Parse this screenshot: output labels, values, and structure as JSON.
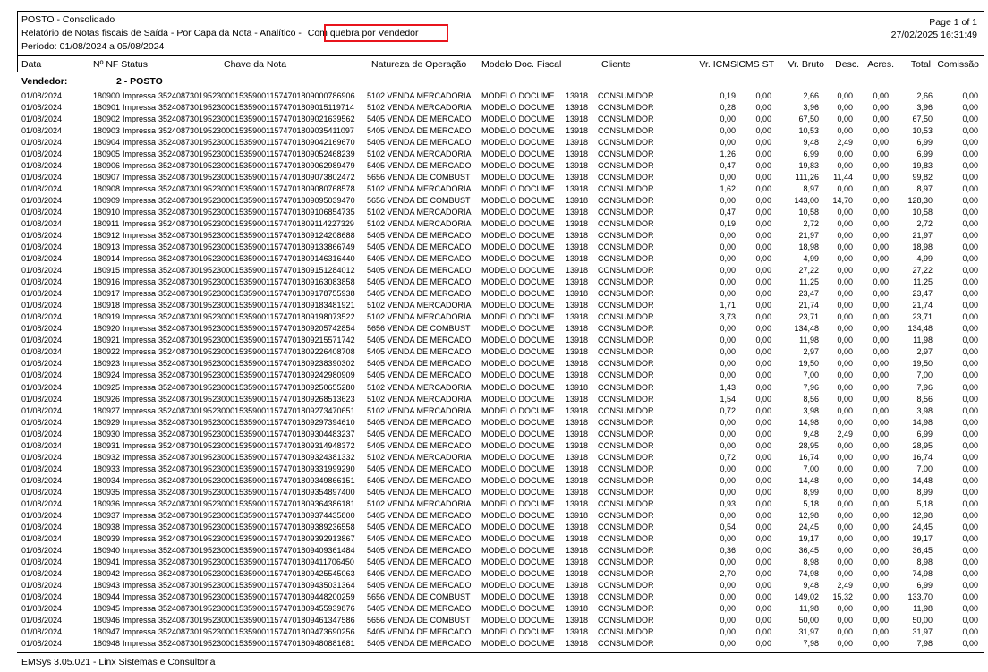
{
  "header": {
    "company": "POSTO - Consolidado",
    "report_title": "Relatório de Notas fiscais de Saída  -  Por Capa da Nota  -  Analítico  - ",
    "highlight": "Com quebra por Vendedor",
    "period": "Período: 01/08/2024 a 05/08/2024",
    "page": "Page 1 of 1",
    "datetime": "27/02/2025 16:31:49"
  },
  "columns": {
    "data": "Data",
    "nf_status": "Nº NF Status",
    "chave": "Chave da Nota",
    "natureza": "Natureza de Operação",
    "modelo": "Modelo Doc. Fiscal",
    "cliente": "Cliente",
    "vr_icms": "Vr. ICMS",
    "icms_st": "ICMS ST",
    "vr_bruto": "Vr. Bruto",
    "desc": "Desc.",
    "acres": "Acres.",
    "total": "Total",
    "comissao": "Comissão"
  },
  "group": {
    "label": "Vendedor:",
    "value": "2  -  POSTO"
  },
  "highlight_color": "#e8141c",
  "rows": [
    [
      "01/08/2024",
      "180900",
      "Impressa",
      "35240873019523000153590011574701809000786906",
      "5102 VENDA MERCADORIA",
      "MODELO DOCUME",
      "13918",
      "CONSUMIDOR",
      "0,19",
      "0,00",
      "2,66",
      "0,00",
      "0,00",
      "2,66",
      "0,00"
    ],
    [
      "01/08/2024",
      "180901",
      "Impressa",
      "35240873019523000153590011574701809015119714",
      "5102 VENDA MERCADORIA",
      "MODELO DOCUME",
      "13918",
      "CONSUMIDOR",
      "0,28",
      "0,00",
      "3,96",
      "0,00",
      "0,00",
      "3,96",
      "0,00"
    ],
    [
      "01/08/2024",
      "180902",
      "Impressa",
      "35240873019523000153590011574701809021639562",
      "5405 VENDA DE MERCADO",
      "MODELO DOCUME",
      "13918",
      "CONSUMIDOR",
      "0,00",
      "0,00",
      "67,50",
      "0,00",
      "0,00",
      "67,50",
      "0,00"
    ],
    [
      "01/08/2024",
      "180903",
      "Impressa",
      "35240873019523000153590011574701809035411097",
      "5405 VENDA DE MERCADO",
      "MODELO DOCUME",
      "13918",
      "CONSUMIDOR",
      "0,00",
      "0,00",
      "10,53",
      "0,00",
      "0,00",
      "10,53",
      "0,00"
    ],
    [
      "01/08/2024",
      "180904",
      "Impressa",
      "35240873019523000153590011574701809042169670",
      "5405 VENDA DE MERCADO",
      "MODELO DOCUME",
      "13918",
      "CONSUMIDOR",
      "0,00",
      "0,00",
      "9,48",
      "2,49",
      "0,00",
      "6,99",
      "0,00"
    ],
    [
      "01/08/2024",
      "180905",
      "Impressa",
      "35240873019523000153590011574701809052468239",
      "5102 VENDA MERCADORIA",
      "MODELO DOCUME",
      "13918",
      "CONSUMIDOR",
      "1,26",
      "0,00",
      "6,99",
      "0,00",
      "0,00",
      "6,99",
      "0,00"
    ],
    [
      "01/08/2024",
      "180906",
      "Impressa",
      "35240873019523000153590011574701809062989479",
      "5405 VENDA DE MERCADO",
      "MODELO DOCUME",
      "13918",
      "CONSUMIDOR",
      "0,47",
      "0,00",
      "19,83",
      "0,00",
      "0,00",
      "19,83",
      "0,00"
    ],
    [
      "01/08/2024",
      "180907",
      "Impressa",
      "35240873019523000153590011574701809073802472",
      "5656 VENDA DE COMBUST",
      "MODELO DOCUME",
      "13918",
      "CONSUMIDOR",
      "0,00",
      "0,00",
      "111,26",
      "11,44",
      "0,00",
      "99,82",
      "0,00"
    ],
    [
      "01/08/2024",
      "180908",
      "Impressa",
      "35240873019523000153590011574701809080768578",
      "5102 VENDA MERCADORIA",
      "MODELO DOCUME",
      "13918",
      "CONSUMIDOR",
      "1,62",
      "0,00",
      "8,97",
      "0,00",
      "0,00",
      "8,97",
      "0,00"
    ],
    [
      "01/08/2024",
      "180909",
      "Impressa",
      "35240873019523000153590011574701809095039470",
      "5656 VENDA DE COMBUST",
      "MODELO DOCUME",
      "13918",
      "CONSUMIDOR",
      "0,00",
      "0,00",
      "143,00",
      "14,70",
      "0,00",
      "128,30",
      "0,00"
    ],
    [
      "01/08/2024",
      "180910",
      "Impressa",
      "35240873019523000153590011574701809106854735",
      "5102 VENDA MERCADORIA",
      "MODELO DOCUME",
      "13918",
      "CONSUMIDOR",
      "0,47",
      "0,00",
      "10,58",
      "0,00",
      "0,00",
      "10,58",
      "0,00"
    ],
    [
      "01/08/2024",
      "180911",
      "Impressa",
      "35240873019523000153590011574701809114227329",
      "5102 VENDA MERCADORIA",
      "MODELO DOCUME",
      "13918",
      "CONSUMIDOR",
      "0,19",
      "0,00",
      "2,72",
      "0,00",
      "0,00",
      "2,72",
      "0,00"
    ],
    [
      "01/08/2024",
      "180912",
      "Impressa",
      "35240873019523000153590011574701809124208688",
      "5405 VENDA DE MERCADO",
      "MODELO DOCUME",
      "13918",
      "CONSUMIDOR",
      "0,00",
      "0,00",
      "21,97",
      "0,00",
      "0,00",
      "21,97",
      "0,00"
    ],
    [
      "01/08/2024",
      "180913",
      "Impressa",
      "35240873019523000153590011574701809133866749",
      "5405 VENDA DE MERCADO",
      "MODELO DOCUME",
      "13918",
      "CONSUMIDOR",
      "0,00",
      "0,00",
      "18,98",
      "0,00",
      "0,00",
      "18,98",
      "0,00"
    ],
    [
      "01/08/2024",
      "180914",
      "Impressa",
      "35240873019523000153590011574701809146316440",
      "5405 VENDA DE MERCADO",
      "MODELO DOCUME",
      "13918",
      "CONSUMIDOR",
      "0,00",
      "0,00",
      "4,99",
      "0,00",
      "0,00",
      "4,99",
      "0,00"
    ],
    [
      "01/08/2024",
      "180915",
      "Impressa",
      "35240873019523000153590011574701809151284012",
      "5405 VENDA DE MERCADO",
      "MODELO DOCUME",
      "13918",
      "CONSUMIDOR",
      "0,00",
      "0,00",
      "27,22",
      "0,00",
      "0,00",
      "27,22",
      "0,00"
    ],
    [
      "01/08/2024",
      "180916",
      "Impressa",
      "35240873019523000153590011574701809163083858",
      "5405 VENDA DE MERCADO",
      "MODELO DOCUME",
      "13918",
      "CONSUMIDOR",
      "0,00",
      "0,00",
      "11,25",
      "0,00",
      "0,00",
      "11,25",
      "0,00"
    ],
    [
      "01/08/2024",
      "180917",
      "Impressa",
      "35240873019523000153590011574701809178755938",
      "5405 VENDA DE MERCADO",
      "MODELO DOCUME",
      "13918",
      "CONSUMIDOR",
      "0,00",
      "0,00",
      "23,47",
      "0,00",
      "0,00",
      "23,47",
      "0,00"
    ],
    [
      "01/08/2024",
      "180918",
      "Impressa",
      "35240873019523000153590011574701809183481921",
      "5102 VENDA MERCADORIA",
      "MODELO DOCUME",
      "13918",
      "CONSUMIDOR",
      "1,71",
      "0,00",
      "21,74",
      "0,00",
      "0,00",
      "21,74",
      "0,00"
    ],
    [
      "01/08/2024",
      "180919",
      "Impressa",
      "35240873019523000153590011574701809198073522",
      "5102 VENDA MERCADORIA",
      "MODELO DOCUME",
      "13918",
      "CONSUMIDOR",
      "3,73",
      "0,00",
      "23,71",
      "0,00",
      "0,00",
      "23,71",
      "0,00"
    ],
    [
      "01/08/2024",
      "180920",
      "Impressa",
      "35240873019523000153590011574701809205742854",
      "5656 VENDA DE COMBUST",
      "MODELO DOCUME",
      "13918",
      "CONSUMIDOR",
      "0,00",
      "0,00",
      "134,48",
      "0,00",
      "0,00",
      "134,48",
      "0,00"
    ],
    [
      "01/08/2024",
      "180921",
      "Impressa",
      "35240873019523000153590011574701809215571742",
      "5405 VENDA DE MERCADO",
      "MODELO DOCUME",
      "13918",
      "CONSUMIDOR",
      "0,00",
      "0,00",
      "11,98",
      "0,00",
      "0,00",
      "11,98",
      "0,00"
    ],
    [
      "01/08/2024",
      "180922",
      "Impressa",
      "35240873019523000153590011574701809226408708",
      "5405 VENDA DE MERCADO",
      "MODELO DOCUME",
      "13918",
      "CONSUMIDOR",
      "0,00",
      "0,00",
      "2,97",
      "0,00",
      "0,00",
      "2,97",
      "0,00"
    ],
    [
      "01/08/2024",
      "180923",
      "Impressa",
      "35240873019523000153590011574701809238390302",
      "5405 VENDA DE MERCADO",
      "MODELO DOCUME",
      "13918",
      "CONSUMIDOR",
      "0,00",
      "0,00",
      "19,50",
      "0,00",
      "0,00",
      "19,50",
      "0,00"
    ],
    [
      "01/08/2024",
      "180924",
      "Impressa",
      "35240873019523000153590011574701809242980909",
      "5405 VENDA DE MERCADO",
      "MODELO DOCUME",
      "13918",
      "CONSUMIDOR",
      "0,00",
      "0,00",
      "7,00",
      "0,00",
      "0,00",
      "7,00",
      "0,00"
    ],
    [
      "01/08/2024",
      "180925",
      "Impressa",
      "35240873019523000153590011574701809250655280",
      "5102 VENDA MERCADORIA",
      "MODELO DOCUME",
      "13918",
      "CONSUMIDOR",
      "1,43",
      "0,00",
      "7,96",
      "0,00",
      "0,00",
      "7,96",
      "0,00"
    ],
    [
      "01/08/2024",
      "180926",
      "Impressa",
      "35240873019523000153590011574701809268513623",
      "5102 VENDA MERCADORIA",
      "MODELO DOCUME",
      "13918",
      "CONSUMIDOR",
      "1,54",
      "0,00",
      "8,56",
      "0,00",
      "0,00",
      "8,56",
      "0,00"
    ],
    [
      "01/08/2024",
      "180927",
      "Impressa",
      "35240873019523000153590011574701809273470651",
      "5102 VENDA MERCADORIA",
      "MODELO DOCUME",
      "13918",
      "CONSUMIDOR",
      "0,72",
      "0,00",
      "3,98",
      "0,00",
      "0,00",
      "3,98",
      "0,00"
    ],
    [
      "01/08/2024",
      "180929",
      "Impressa",
      "35240873019523000153590011574701809297394610",
      "5405 VENDA DE MERCADO",
      "MODELO DOCUME",
      "13918",
      "CONSUMIDOR",
      "0,00",
      "0,00",
      "14,98",
      "0,00",
      "0,00",
      "14,98",
      "0,00"
    ],
    [
      "01/08/2024",
      "180930",
      "Impressa",
      "35240873019523000153590011574701809304483237",
      "5405 VENDA DE MERCADO",
      "MODELO DOCUME",
      "13918",
      "CONSUMIDOR",
      "0,00",
      "0,00",
      "9,48",
      "2,49",
      "0,00",
      "6,99",
      "0,00"
    ],
    [
      "01/08/2024",
      "180931",
      "Impressa",
      "35240873019523000153590011574701809314948372",
      "5405 VENDA DE MERCADO",
      "MODELO DOCUME",
      "13918",
      "CONSUMIDOR",
      "0,00",
      "0,00",
      "28,95",
      "0,00",
      "0,00",
      "28,95",
      "0,00"
    ],
    [
      "01/08/2024",
      "180932",
      "Impressa",
      "35240873019523000153590011574701809324381332",
      "5102 VENDA MERCADORIA",
      "MODELO DOCUME",
      "13918",
      "CONSUMIDOR",
      "0,72",
      "0,00",
      "16,74",
      "0,00",
      "0,00",
      "16,74",
      "0,00"
    ],
    [
      "01/08/2024",
      "180933",
      "Impressa",
      "35240873019523000153590011574701809331999290",
      "5405 VENDA DE MERCADO",
      "MODELO DOCUME",
      "13918",
      "CONSUMIDOR",
      "0,00",
      "0,00",
      "7,00",
      "0,00",
      "0,00",
      "7,00",
      "0,00"
    ],
    [
      "01/08/2024",
      "180934",
      "Impressa",
      "35240873019523000153590011574701809349866151",
      "5405 VENDA DE MERCADO",
      "MODELO DOCUME",
      "13918",
      "CONSUMIDOR",
      "0,00",
      "0,00",
      "14,48",
      "0,00",
      "0,00",
      "14,48",
      "0,00"
    ],
    [
      "01/08/2024",
      "180935",
      "Impressa",
      "35240873019523000153590011574701809354897400",
      "5405 VENDA DE MERCADO",
      "MODELO DOCUME",
      "13918",
      "CONSUMIDOR",
      "0,00",
      "0,00",
      "8,99",
      "0,00",
      "0,00",
      "8,99",
      "0,00"
    ],
    [
      "01/08/2024",
      "180936",
      "Impressa",
      "35240873019523000153590011574701809364386181",
      "5102 VENDA MERCADORIA",
      "MODELO DOCUME",
      "13918",
      "CONSUMIDOR",
      "0,93",
      "0,00",
      "5,18",
      "0,00",
      "0,00",
      "5,18",
      "0,00"
    ],
    [
      "01/08/2024",
      "180937",
      "Impressa",
      "35240873019523000153590011574701809374435800",
      "5405 VENDA DE MERCADO",
      "MODELO DOCUME",
      "13918",
      "CONSUMIDOR",
      "0,00",
      "0,00",
      "12,98",
      "0,00",
      "0,00",
      "12,98",
      "0,00"
    ],
    [
      "01/08/2024",
      "180938",
      "Impressa",
      "35240873019523000153590011574701809389236558",
      "5405 VENDA DE MERCADO",
      "MODELO DOCUME",
      "13918",
      "CONSUMIDOR",
      "0,54",
      "0,00",
      "24,45",
      "0,00",
      "0,00",
      "24,45",
      "0,00"
    ],
    [
      "01/08/2024",
      "180939",
      "Impressa",
      "35240873019523000153590011574701809392913867",
      "5405 VENDA DE MERCADO",
      "MODELO DOCUME",
      "13918",
      "CONSUMIDOR",
      "0,00",
      "0,00",
      "19,17",
      "0,00",
      "0,00",
      "19,17",
      "0,00"
    ],
    [
      "01/08/2024",
      "180940",
      "Impressa",
      "35240873019523000153590011574701809409361484",
      "5405 VENDA DE MERCADO",
      "MODELO DOCUME",
      "13918",
      "CONSUMIDOR",
      "0,36",
      "0,00",
      "36,45",
      "0,00",
      "0,00",
      "36,45",
      "0,00"
    ],
    [
      "01/08/2024",
      "180941",
      "Impressa",
      "35240873019523000153590011574701809411706450",
      "5405 VENDA DE MERCADO",
      "MODELO DOCUME",
      "13918",
      "CONSUMIDOR",
      "0,00",
      "0,00",
      "8,98",
      "0,00",
      "0,00",
      "8,98",
      "0,00"
    ],
    [
      "01/08/2024",
      "180942",
      "Impressa",
      "35240873019523000153590011574701809425545063",
      "5405 VENDA DE MERCADO",
      "MODELO DOCUME",
      "13918",
      "CONSUMIDOR",
      "2,70",
      "0,00",
      "74,98",
      "0,00",
      "0,00",
      "74,98",
      "0,00"
    ],
    [
      "01/08/2024",
      "180943",
      "Impressa",
      "35240873019523000153590011574701809435031364",
      "5405 VENDA DE MERCADO",
      "MODELO DOCUME",
      "13918",
      "CONSUMIDOR",
      "0,00",
      "0,00",
      "9,48",
      "2,49",
      "0,00",
      "6,99",
      "0,00"
    ],
    [
      "01/08/2024",
      "180944",
      "Impressa",
      "35240873019523000153590011574701809448200259",
      "5656 VENDA DE COMBUST",
      "MODELO DOCUME",
      "13918",
      "CONSUMIDOR",
      "0,00",
      "0,00",
      "149,02",
      "15,32",
      "0,00",
      "133,70",
      "0,00"
    ],
    [
      "01/08/2024",
      "180945",
      "Impressa",
      "35240873019523000153590011574701809455939876",
      "5405 VENDA DE MERCADO",
      "MODELO DOCUME",
      "13918",
      "CONSUMIDOR",
      "0,00",
      "0,00",
      "11,98",
      "0,00",
      "0,00",
      "11,98",
      "0,00"
    ],
    [
      "01/08/2024",
      "180946",
      "Impressa",
      "35240873019523000153590011574701809461347586",
      "5656 VENDA DE COMBUST",
      "MODELO DOCUME",
      "13918",
      "CONSUMIDOR",
      "0,00",
      "0,00",
      "50,00",
      "0,00",
      "0,00",
      "50,00",
      "0,00"
    ],
    [
      "01/08/2024",
      "180947",
      "Impressa",
      "35240873019523000153590011574701809473690256",
      "5405 VENDA DE MERCADO",
      "MODELO DOCUME",
      "13918",
      "CONSUMIDOR",
      "0,00",
      "0,00",
      "31,97",
      "0,00",
      "0,00",
      "31,97",
      "0,00"
    ],
    [
      "01/08/2024",
      "180948",
      "Impressa",
      "35240873019523000153590011574701809480881681",
      "5405 VENDA DE MERCADO",
      "MODELO DOCUME",
      "13918",
      "CONSUMIDOR",
      "0,00",
      "0,00",
      "7,98",
      "0,00",
      "0,00",
      "7,98",
      "0,00"
    ]
  ],
  "footer": "EMSys 3.05.021 - Linx Sistemas e Consultoria"
}
